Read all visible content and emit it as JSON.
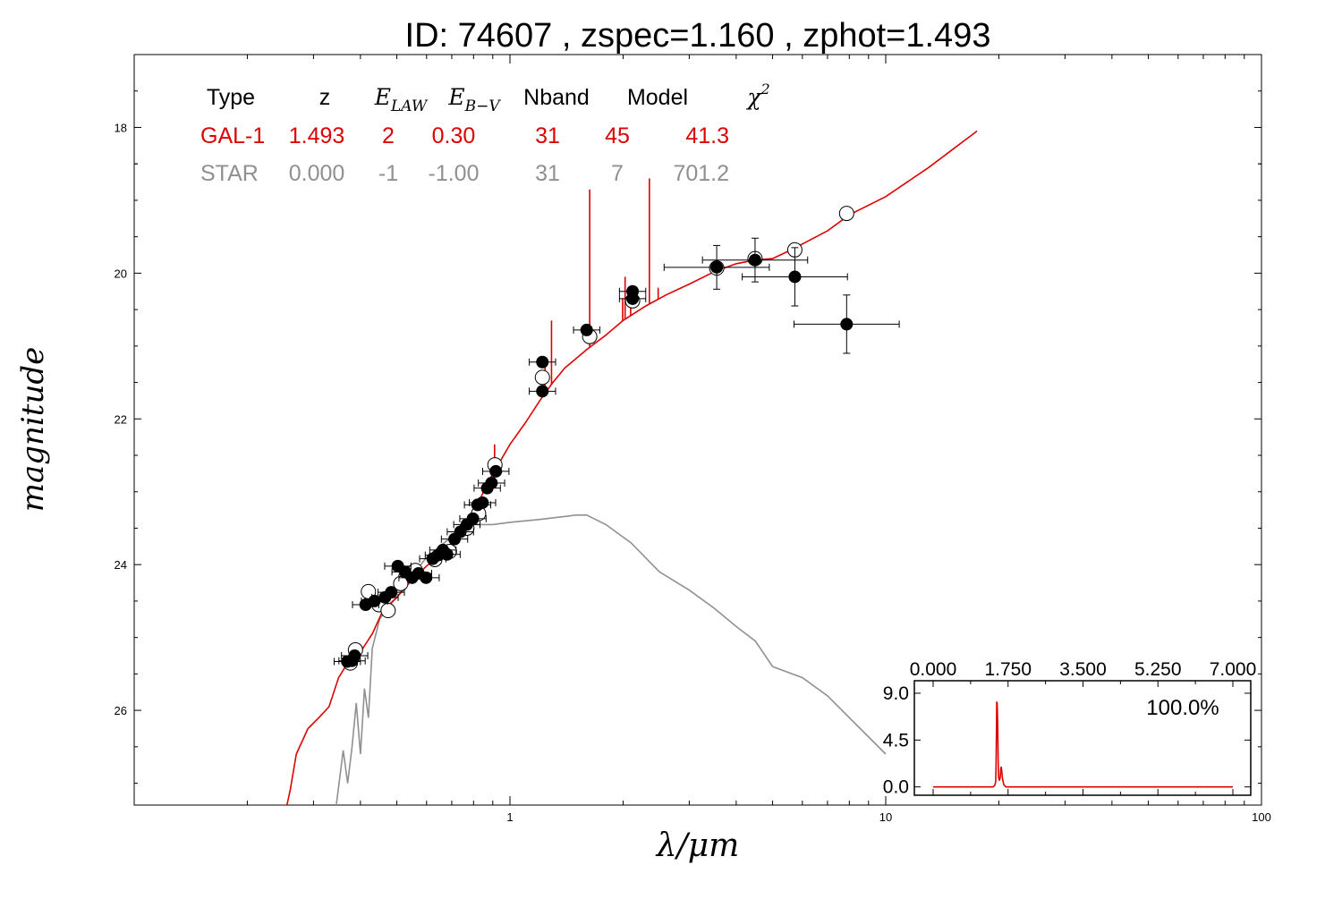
{
  "title": "ID:  74607 , zspec=1.160 , zphot=1.493",
  "chart_data": {
    "type": "scatter",
    "title": "ID:  74607 , zspec=1.160 , zphot=1.493",
    "xlabel": "λ/μm",
    "ylabel": "magnitude",
    "x_scale": "log",
    "xlim": [
      0.1,
      100
    ],
    "ylim": [
      27.3,
      17.0
    ],
    "y_inverted": true,
    "x_tick_labels": [
      "1",
      "10",
      "100"
    ],
    "y_tick_labels": [
      "18",
      "20",
      "22",
      "24",
      "26"
    ],
    "grid": false,
    "colors": {
      "galaxy": "#dd0000",
      "star": "#909090",
      "data": "#000000"
    },
    "table": {
      "headers": [
        "Type",
        "z",
        "E",
        "E",
        "Nband",
        "Model",
        "χ"
      ],
      "header_subscripts": [
        "",
        "",
        "LAW",
        "B−V",
        "",
        "",
        ""
      ],
      "header_superscripts": [
        "",
        "",
        "",
        "",
        "",
        "",
        "2"
      ],
      "rows": [
        {
          "cells": [
            "GAL-1",
            "1.493",
            "2",
            "0.30",
            "31",
            "45",
            "41.3"
          ],
          "color": "#dd0000"
        },
        {
          "cells": [
            "STAR",
            "0.000",
            "-1",
            "-1.00",
            "31",
            "7",
            "701.2"
          ],
          "color": "#909090"
        }
      ]
    },
    "galaxy_model": [
      [
        0.255,
        27.3
      ],
      [
        0.26,
        27.1
      ],
      [
        0.27,
        26.6
      ],
      [
        0.29,
        26.25
      ],
      [
        0.31,
        26.1
      ],
      [
        0.33,
        25.95
      ],
      [
        0.35,
        25.55
      ],
      [
        0.37,
        25.35
      ],
      [
        0.4,
        25.2
      ],
      [
        0.43,
        24.95
      ],
      [
        0.46,
        24.62
      ],
      [
        0.5,
        24.45
      ],
      [
        0.55,
        24.2
      ],
      [
        0.6,
        24.02
      ],
      [
        0.65,
        23.88
      ],
      [
        0.7,
        23.7
      ],
      [
        0.75,
        23.55
      ],
      [
        0.8,
        23.3
      ],
      [
        0.85,
        23.0
      ],
      [
        0.9,
        22.75
      ],
      [
        0.95,
        22.55
      ],
      [
        1.0,
        22.35
      ],
      [
        1.1,
        22.05
      ],
      [
        1.2,
        21.75
      ],
      [
        1.3,
        21.5
      ],
      [
        1.4,
        21.3
      ],
      [
        1.6,
        21.05
      ],
      [
        1.8,
        20.85
      ],
      [
        2.0,
        20.65
      ],
      [
        2.3,
        20.45
      ],
      [
        2.6,
        20.3
      ],
      [
        3.0,
        20.15
      ],
      [
        3.5,
        19.98
      ],
      [
        4.0,
        19.87
      ],
      [
        4.5,
        19.82
      ],
      [
        5.0,
        19.8
      ],
      [
        5.5,
        19.7
      ],
      [
        6.0,
        19.6
      ],
      [
        7.0,
        19.42
      ],
      [
        8.0,
        19.2
      ],
      [
        10.0,
        18.95
      ],
      [
        13.0,
        18.55
      ],
      [
        17.5,
        18.05
      ]
    ],
    "galaxy_emission_lines": [
      [
        0.91,
        22.35
      ],
      [
        1.24,
        21.2
      ],
      [
        1.29,
        20.65
      ],
      [
        1.63,
        18.85
      ],
      [
        1.995,
        20.35
      ],
      [
        2.025,
        20.05
      ],
      [
        2.095,
        20.3
      ],
      [
        2.35,
        18.7
      ],
      [
        2.48,
        20.2
      ]
    ],
    "star_model": [
      [
        0.345,
        27.3
      ],
      [
        0.36,
        26.55
      ],
      [
        0.37,
        27.0
      ],
      [
        0.38,
        26.5
      ],
      [
        0.39,
        25.9
      ],
      [
        0.4,
        26.6
      ],
      [
        0.41,
        25.7
      ],
      [
        0.42,
        26.1
      ],
      [
        0.43,
        25.15
      ],
      [
        0.45,
        24.75
      ],
      [
        0.47,
        24.6
      ],
      [
        0.5,
        24.45
      ],
      [
        0.55,
        24.15
      ],
      [
        0.6,
        23.9
      ],
      [
        0.65,
        23.75
      ],
      [
        0.7,
        23.62
      ],
      [
        0.75,
        23.52
      ],
      [
        0.8,
        23.45
      ],
      [
        0.9,
        23.45
      ],
      [
        1.0,
        23.42
      ],
      [
        1.2,
        23.38
      ],
      [
        1.5,
        23.32
      ],
      [
        1.6,
        23.32
      ],
      [
        1.8,
        23.45
      ],
      [
        2.1,
        23.7
      ],
      [
        2.5,
        24.1
      ],
      [
        3.0,
        24.35
      ],
      [
        3.5,
        24.6
      ],
      [
        4.0,
        24.85
      ],
      [
        4.5,
        25.05
      ],
      [
        5.0,
        25.4
      ],
      [
        6.0,
        25.55
      ],
      [
        7.0,
        25.8
      ],
      [
        8.0,
        26.1
      ],
      [
        10.0,
        26.6
      ]
    ],
    "observed_points": [
      [
        0.369,
        25.33,
        0.03
      ],
      [
        0.38,
        25.32,
        0.03
      ],
      [
        0.386,
        25.25,
        0.03
      ],
      [
        0.413,
        24.55,
        0.03
      ],
      [
        0.436,
        24.5,
        0.03
      ],
      [
        0.465,
        24.45,
        0.03
      ],
      [
        0.483,
        24.38,
        0.03
      ],
      [
        0.503,
        24.02,
        0.03
      ],
      [
        0.526,
        24.1,
        0.03
      ],
      [
        0.549,
        24.18,
        0.03
      ],
      [
        0.571,
        24.12,
        0.03
      ],
      [
        0.598,
        24.18,
        0.03
      ],
      [
        0.623,
        23.92,
        0.03
      ],
      [
        0.645,
        23.87,
        0.03
      ],
      [
        0.663,
        23.8,
        0.03
      ],
      [
        0.68,
        23.86,
        0.03
      ],
      [
        0.712,
        23.65,
        0.03
      ],
      [
        0.738,
        23.55,
        0.03
      ],
      [
        0.768,
        23.45,
        0.03
      ],
      [
        0.797,
        23.37,
        0.03
      ],
      [
        0.82,
        23.18,
        0.03
      ],
      [
        0.845,
        23.15,
        0.03
      ],
      [
        0.87,
        22.95,
        0.03
      ],
      [
        0.893,
        22.88,
        0.03
      ],
      [
        0.917,
        22.72,
        0.03
      ],
      [
        1.22,
        21.22,
        0.03
      ],
      [
        1.22,
        21.62,
        0.03
      ],
      [
        1.6,
        20.78,
        0.03
      ],
      [
        2.12,
        20.25,
        0.03
      ],
      [
        2.12,
        20.35,
        0.03
      ],
      [
        3.55,
        19.92,
        0.3
      ],
      [
        4.49,
        19.82,
        0.3
      ],
      [
        5.73,
        20.05,
        0.4
      ],
      [
        7.87,
        20.7,
        0.4
      ]
    ],
    "model_points": [
      [
        0.376,
        25.35
      ],
      [
        0.388,
        25.17
      ],
      [
        0.42,
        24.37
      ],
      [
        0.448,
        24.55
      ],
      [
        0.474,
        24.63
      ],
      [
        0.512,
        24.26
      ],
      [
        0.56,
        24.08
      ],
      [
        0.631,
        23.93
      ],
      [
        0.69,
        23.82
      ],
      [
        0.768,
        23.5
      ],
      [
        0.825,
        23.3
      ],
      [
        0.912,
        22.63
      ],
      [
        1.22,
        21.43
      ],
      [
        1.63,
        20.87
      ],
      [
        2.12,
        20.38
      ],
      [
        3.55,
        19.93
      ],
      [
        4.49,
        19.8
      ],
      [
        5.73,
        19.68
      ],
      [
        7.87,
        19.18
      ]
    ],
    "pdz": {
      "x_tick_labels": [
        "0.000",
        "1.750",
        "3.500",
        "5.250",
        "7.000"
      ],
      "y_tick_labels": [
        "0.0",
        "4.5",
        "9.0"
      ],
      "xlim": [
        0,
        7.0
      ],
      "ylim": [
        -0.8,
        10.2
      ],
      "annotation": "100.0%",
      "curve": [
        [
          0,
          0
        ],
        [
          1.4,
          0
        ],
        [
          1.44,
          0.15
        ],
        [
          1.46,
          0.5
        ],
        [
          1.47,
          2
        ],
        [
          1.48,
          5.5
        ],
        [
          1.485,
          8.2
        ],
        [
          1.49,
          7.6
        ],
        [
          1.495,
          8.1
        ],
        [
          1.5,
          7.4
        ],
        [
          1.51,
          5.2
        ],
        [
          1.52,
          2.4
        ],
        [
          1.53,
          0.9
        ],
        [
          1.55,
          0.6
        ],
        [
          1.57,
          1.0
        ],
        [
          1.58,
          1.7
        ],
        [
          1.59,
          1.95
        ],
        [
          1.6,
          1.6
        ],
        [
          1.62,
          0.8
        ],
        [
          1.65,
          0.2
        ],
        [
          1.7,
          0
        ],
        [
          7.0,
          0
        ]
      ]
    }
  }
}
